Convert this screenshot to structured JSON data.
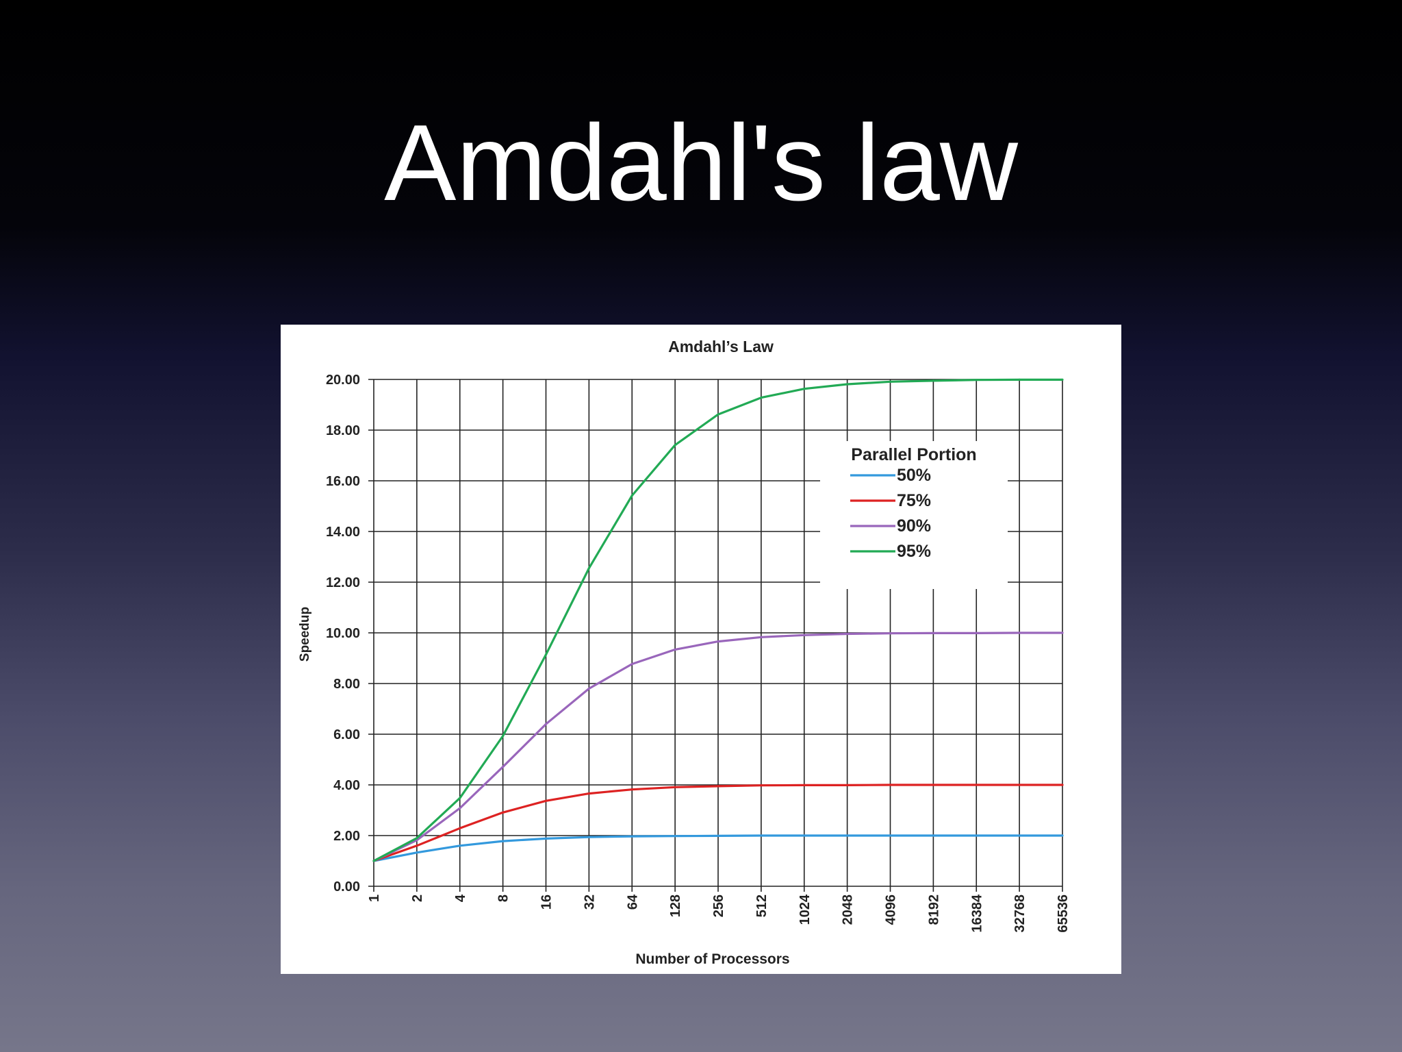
{
  "slide": {
    "title": "Amdahl's law"
  },
  "chart_data": {
    "type": "line",
    "title": "Amdahl’s Law",
    "xlabel": "Number of Processors",
    "ylabel": "Speedup",
    "categories": [
      "1",
      "2",
      "4",
      "8",
      "16",
      "32",
      "64",
      "128",
      "256",
      "512",
      "1024",
      "2048",
      "4096",
      "8192",
      "16384",
      "32768",
      "65536"
    ],
    "ylim": [
      0,
      20
    ],
    "yticks": [
      "0.00",
      "2.00",
      "4.00",
      "6.00",
      "8.00",
      "10.00",
      "12.00",
      "14.00",
      "16.00",
      "18.00",
      "20.00"
    ],
    "grid": true,
    "legend": {
      "title": "Parallel Portion",
      "placement": "top-right"
    },
    "series": [
      {
        "name": "50%",
        "color": "#3399dd",
        "values": [
          1.0,
          1.33,
          1.6,
          1.78,
          1.88,
          1.94,
          1.97,
          1.98,
          1.99,
          2.0,
          2.0,
          2.0,
          2.0,
          2.0,
          2.0,
          2.0,
          2.0
        ]
      },
      {
        "name": "75%",
        "color": "#dd2222",
        "values": [
          1.0,
          1.6,
          2.29,
          2.91,
          3.37,
          3.66,
          3.82,
          3.91,
          3.95,
          3.98,
          3.99,
          3.99,
          4.0,
          4.0,
          4.0,
          4.0,
          4.0
        ]
      },
      {
        "name": "90%",
        "color": "#9966bb",
        "values": [
          1.0,
          1.82,
          3.08,
          4.71,
          6.4,
          7.8,
          8.77,
          9.34,
          9.66,
          9.83,
          9.91,
          9.96,
          9.98,
          9.99,
          9.99,
          10.0,
          10.0
        ]
      },
      {
        "name": "95%",
        "color": "#22aa55",
        "values": [
          1.0,
          1.9,
          3.48,
          5.93,
          9.14,
          12.55,
          15.42,
          17.41,
          18.62,
          19.28,
          19.63,
          19.81,
          19.91,
          19.95,
          19.98,
          19.99,
          19.99
        ]
      }
    ]
  }
}
